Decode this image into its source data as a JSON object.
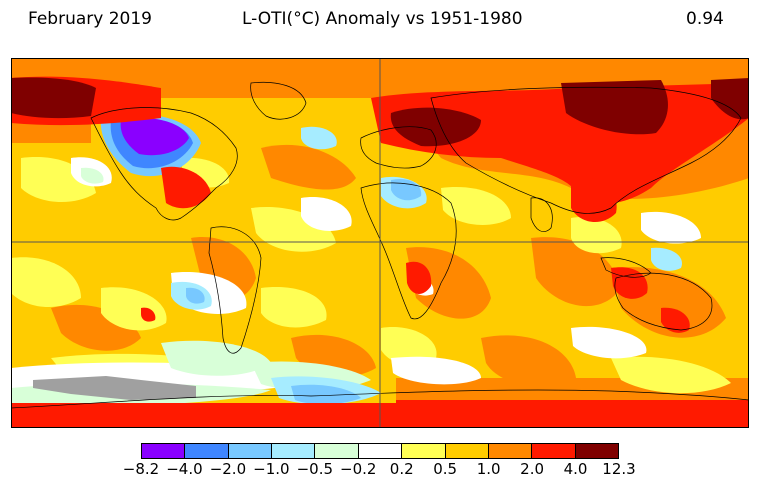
{
  "header": {
    "date": "February 2019",
    "title": "L-OTI(°C) Anomaly vs 1951-1980",
    "global_mean": "0.94"
  },
  "colorbar": {
    "ticks": [
      "−8.2",
      "−4.0",
      "−2.0",
      "−1.0",
      "−0.5",
      "−0.2",
      "0.2",
      "0.5",
      "1.0",
      "2.0",
      "4.0",
      "12.3"
    ],
    "colors": [
      "#8a00ff",
      "#3f86ff",
      "#78c8ff",
      "#a6ecff",
      "#d8ffd8",
      "#ffffff",
      "#ffff55",
      "#ffcc00",
      "#ff8800",
      "#ff1a00",
      "#7f0000"
    ]
  },
  "map": {
    "projection": "equirectangular",
    "missing_color": "#a0a0a0",
    "background_class": "#ffcc00"
  }
}
